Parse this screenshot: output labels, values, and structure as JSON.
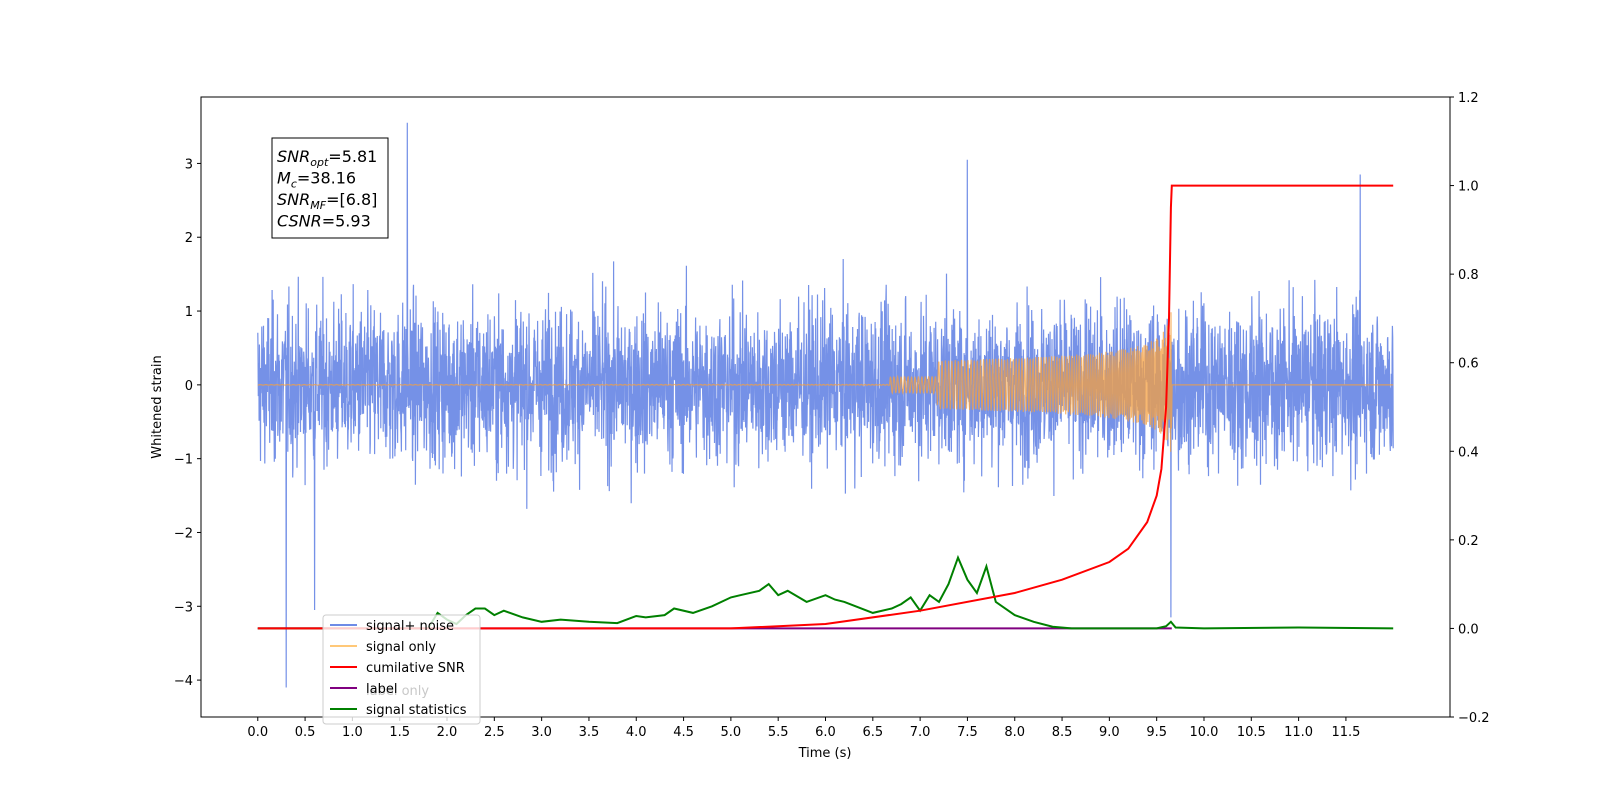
{
  "chart_data": {
    "type": "line",
    "xlabel": "Time (s)",
    "ylabel": "Whitened strain",
    "xlim": [
      -0.6,
      12.6
    ],
    "ylim": [
      -4.5,
      3.9
    ],
    "y2lim": [
      -0.2,
      1.2
    ],
    "x_ticks": [
      "0.0",
      "0.5",
      "1.0",
      "1.5",
      "2.0",
      "2.5",
      "3.0",
      "3.5",
      "4.0",
      "4.5",
      "5.0",
      "5.5",
      "6.0",
      "6.5",
      "7.0",
      "7.5",
      "8.0",
      "8.5",
      "9.0",
      "9.5",
      "10.0",
      "10.5",
      "11.0",
      "11.5"
    ],
    "y_ticks": [
      "3",
      "2",
      "1",
      "0",
      "−1",
      "−2",
      "−3",
      "−4"
    ],
    "y2_ticks": [
      "1.2",
      "1.0",
      "0.8",
      "0.6",
      "0.4",
      "0.2",
      "0.0",
      "−0.2"
    ],
    "grid": false,
    "legend_position": "lower-left",
    "annotation": {
      "lines": [
        {
          "sym": "SNR",
          "sub": "opt",
          "val": "=5.81"
        },
        {
          "sym": "M",
          "sub": "c",
          "val": "=38.16"
        },
        {
          "sym": "SNR",
          "sub": "MF",
          "val": "=[6.8]"
        },
        {
          "sym": "CSNR",
          "sub": "",
          "val": "=5.93"
        }
      ]
    },
    "series": [
      {
        "name": "signal+ noise",
        "axis": "left",
        "color": "#6e8be6",
        "t_range": [
          0,
          12
        ],
        "typical_amplitude": 1.6,
        "spikes": [
          {
            "x": 0.3,
            "y": -4.1
          },
          {
            "x": 0.6,
            "y": -3.05
          },
          {
            "x": 1.58,
            "y": 3.55
          },
          {
            "x": 7.5,
            "y": 3.05
          },
          {
            "x": 9.65,
            "y": -3.15
          },
          {
            "x": 11.65,
            "y": 2.85
          }
        ]
      },
      {
        "name": "signal only",
        "axis": "left",
        "color": "#f5a040",
        "chirp_end": 9.66,
        "peak_amplitude": 1.1
      },
      {
        "name": "cumilative SNR",
        "axis": "right",
        "color": "#ff0000",
        "x": [
          0,
          5.0,
          6.0,
          7.0,
          8.0,
          8.5,
          9.0,
          9.2,
          9.4,
          9.5,
          9.55,
          9.6,
          9.63,
          9.65,
          9.66,
          9.67,
          12.0
        ],
        "y": [
          0.0,
          0.0,
          0.01,
          0.04,
          0.08,
          0.11,
          0.15,
          0.18,
          0.24,
          0.3,
          0.36,
          0.5,
          0.7,
          0.95,
          1.0,
          1.0,
          1.0
        ]
      },
      {
        "name": "label only",
        "axis": "right",
        "color": "#800080",
        "x": [
          0,
          9.66
        ],
        "y": [
          0.0,
          0.0
        ]
      },
      {
        "name": "signal statistics",
        "axis": "right",
        "color": "#008000",
        "x": [
          0,
          1.8,
          1.9,
          2.0,
          2.1,
          2.2,
          2.3,
          2.4,
          2.5,
          2.6,
          2.8,
          3.0,
          3.2,
          3.5,
          3.8,
          4.0,
          4.1,
          4.3,
          4.4,
          4.6,
          4.8,
          5.0,
          5.1,
          5.3,
          5.4,
          5.5,
          5.6,
          5.8,
          6.0,
          6.1,
          6.2,
          6.5,
          6.7,
          6.8,
          6.9,
          7.0,
          7.1,
          7.2,
          7.3,
          7.4,
          7.5,
          7.6,
          7.7,
          7.8,
          8.0,
          8.2,
          8.4,
          8.6,
          9.0,
          9.5,
          9.6,
          9.65,
          9.7,
          10.0,
          11.0,
          12.0
        ],
        "y": [
          0.0,
          0.0,
          0.035,
          0.02,
          0.01,
          0.03,
          0.045,
          0.045,
          0.03,
          0.04,
          0.025,
          0.015,
          0.02,
          0.015,
          0.012,
          0.028,
          0.025,
          0.03,
          0.045,
          0.035,
          0.05,
          0.07,
          0.075,
          0.085,
          0.1,
          0.075,
          0.085,
          0.06,
          0.075,
          0.065,
          0.06,
          0.035,
          0.045,
          0.055,
          0.07,
          0.04,
          0.075,
          0.06,
          0.1,
          0.16,
          0.11,
          0.08,
          0.14,
          0.06,
          0.03,
          0.015,
          0.004,
          0.0,
          0.0,
          0.0,
          0.005,
          0.015,
          0.002,
          0.0,
          0.002,
          0.0
        ]
      }
    ]
  },
  "legend": [
    {
      "label": "signal+ noise",
      "color": "#6e8be6"
    },
    {
      "label": "signal only",
      "color": "#ffc878"
    },
    {
      "label": "cumilative SNR",
      "color": "#ff0000"
    },
    {
      "label": "label",
      "color": "#800080"
    },
    {
      "label": "signal statistics",
      "color": "#008000"
    }
  ],
  "legend_overlap_text": "label only"
}
